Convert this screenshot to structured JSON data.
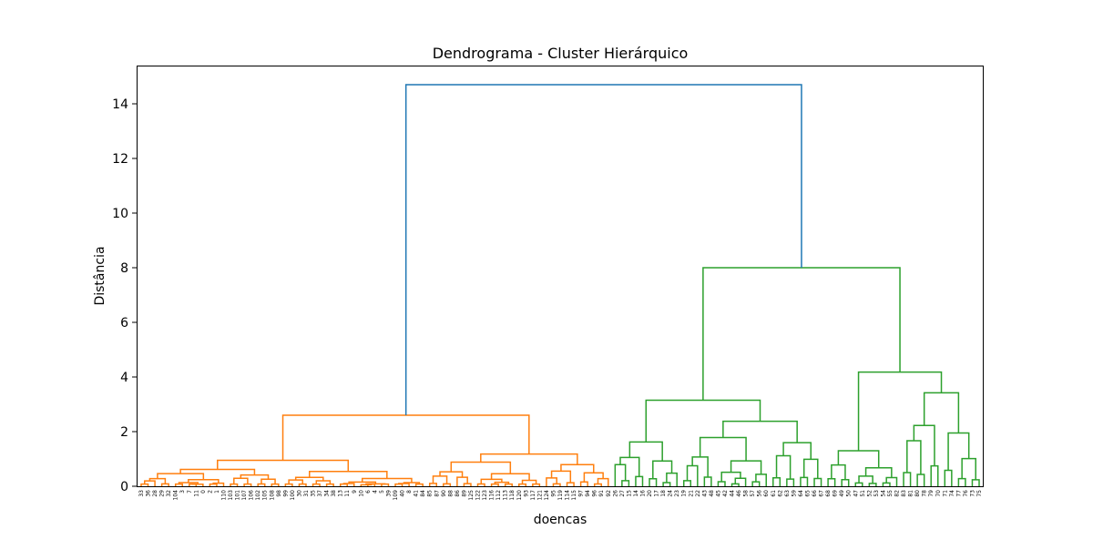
{
  "chart_data": {
    "type": "dendrogram",
    "title": "Dendrograma - Cluster Hierárquico",
    "xlabel": "doencas",
    "ylabel": "Distância",
    "ylim": [
      0,
      15.4
    ],
    "yticks": [
      0,
      2,
      4,
      6,
      8,
      10,
      12,
      14
    ],
    "grid": false,
    "leaves": [
      "33",
      "36",
      "28",
      "29",
      "32",
      "104",
      "3",
      "7",
      "11",
      "0",
      "2",
      "1",
      "110",
      "103",
      "101",
      "107",
      "106",
      "102",
      "105",
      "108",
      "98",
      "99",
      "100",
      "30",
      "31",
      "35",
      "37",
      "34",
      "38",
      "13",
      "11",
      "9",
      "10",
      "6",
      "4",
      "5",
      "39",
      "109",
      "40",
      "8",
      "41",
      "84",
      "85",
      "87",
      "90",
      "88",
      "86",
      "89",
      "125",
      "122",
      "123",
      "116",
      "112",
      "113",
      "118",
      "120",
      "93",
      "117",
      "121",
      "124",
      "95",
      "119",
      "114",
      "115",
      "97",
      "94",
      "96",
      "91",
      "92",
      "26",
      "27",
      "15",
      "14",
      "16",
      "20",
      "17",
      "18",
      "24",
      "23",
      "19",
      "21",
      "22",
      "43",
      "48",
      "45",
      "42",
      "44",
      "46",
      "58",
      "57",
      "56",
      "60",
      "61",
      "62",
      "63",
      "59",
      "64",
      "65",
      "66",
      "67",
      "68",
      "69",
      "49",
      "50",
      "47",
      "51",
      "52",
      "53",
      "54",
      "55",
      "82",
      "83",
      "81",
      "80",
      "78",
      "79",
      "70",
      "71",
      "74",
      "77",
      "76",
      "73",
      "75"
    ],
    "clusters": [
      {
        "color": "#ff7f0e"
      },
      {
        "color": "#2ca02c"
      },
      {
        "color": "#1f77b4"
      }
    ],
    "merges": [
      {
        "cluster": 2,
        "left": [
          0,
          60
        ],
        "right": [
          3,
          61
        ],
        "height": 14.7
      },
      {
        "cluster": 0,
        "left": [
          0,
          30
        ],
        "right": [
          3,
          6
        ],
        "height": 2.6
      },
      {
        "cluster": 0,
        "left": [
          0,
          3
        ],
        "right": [
          3,
          5
        ],
        "height": 0.95
      },
      {
        "cluster": 0,
        "left": [
          0,
          3
        ],
        "right": [
          3,
          2
        ],
        "height": 0.88
      },
      {
        "cluster": 0,
        "left": [
          0,
          2.5
        ],
        "right": [
          3,
          2
        ],
        "height": 0.75
      },
      {
        "cluster": 0,
        "left": [
          0,
          2
        ],
        "right": [
          3,
          2
        ],
        "height": 0.65
      },
      {
        "cluster": 0,
        "left": [
          0,
          1
        ],
        "right": [
          3,
          1
        ],
        "height": 0.42
      },
      {
        "cluster": 0,
        "left": [
          0,
          0.4
        ],
        "right": [
          0,
          0.4
        ],
        "height": 0.4
      },
      {
        "cluster": 0,
        "left": [
          0,
          0.3
        ],
        "right": [
          0,
          0.3
        ],
        "height": 0.3
      },
      {
        "cluster": 0,
        "left": [
          0,
          0.2
        ],
        "right": [
          0,
          0.2
        ],
        "height": 0.22
      },
      {
        "cluster": 0,
        "left": [
          0,
          1
        ],
        "right": [
          3,
          1
        ],
        "height": 0.35
      },
      {
        "cluster": 0,
        "left": [
          0,
          0.2
        ],
        "right": [
          0,
          0.2
        ],
        "height": 0.28
      },
      {
        "cluster": 0,
        "left": [
          0,
          0.15
        ],
        "right": [
          0,
          0.15
        ],
        "height": 0.18
      },
      {
        "cluster": 0,
        "left": [
          0,
          1
        ],
        "right": [
          3,
          1
        ],
        "height": 0.42
      },
      {
        "cluster": 0,
        "left": [
          0,
          0.25
        ],
        "right": [
          0,
          0.25
        ],
        "height": 0.25
      },
      {
        "cluster": 0,
        "left": [
          0,
          1
        ],
        "right": [
          3,
          1
        ],
        "height": 0.38
      },
      {
        "cluster": 0,
        "left": [
          0,
          0.2
        ],
        "right": [
          0,
          0.2
        ],
        "height": 0.2
      },
      {
        "cluster": 0,
        "left": [
          0,
          1
        ],
        "right": [
          3,
          1
        ],
        "height": 0.33
      },
      {
        "cluster": 0,
        "left": [
          0,
          0.15
        ],
        "right": [
          0,
          0.15
        ],
        "height": 0.15
      },
      {
        "cluster": 0,
        "left": [
          0,
          1
        ],
        "right": [
          3,
          1
        ],
        "height": 0.3
      },
      {
        "cluster": 0,
        "left": [
          0,
          0.2
        ],
        "right": [
          0,
          0.2
        ],
        "height": 0.2
      },
      {
        "cluster": 0,
        "left": [
          0,
          3
        ],
        "right": [
          3,
          4
        ],
        "height": 1.18
      },
      {
        "cluster": 0,
        "left": [
          0,
          2
        ],
        "right": [
          3,
          2
        ],
        "height": 1.05
      },
      {
        "cluster": 0,
        "left": [
          0,
          1
        ],
        "right": [
          3,
          1
        ],
        "height": 0.55
      },
      {
        "cluster": 0,
        "left": [
          0,
          1
        ],
        "right": [
          3,
          1
        ],
        "height": 0.45
      },
      {
        "cluster": 0,
        "left": [
          0,
          0.3
        ],
        "right": [
          0,
          0.3
        ],
        "height": 0.33
      },
      {
        "cluster": 0,
        "left": [
          0,
          1
        ],
        "right": [
          3,
          1
        ],
        "height": 0.75
      },
      {
        "cluster": 0,
        "left": [
          0,
          1
        ],
        "right": [
          3,
          1
        ],
        "height": 0.6
      },
      {
        "cluster": 0,
        "left": [
          0,
          0.3
        ],
        "right": [
          0,
          0.3
        ],
        "height": 0.32
      },
      {
        "cluster": 1,
        "left": [
          0,
          8
        ],
        "right": [
          3,
          8
        ],
        "height": 8.0
      },
      {
        "cluster": 1,
        "left": [
          0,
          4
        ],
        "right": [
          3,
          4
        ],
        "height": 3.15
      },
      {
        "cluster": 1,
        "left": [
          0,
          2
        ],
        "right": [
          3,
          2
        ],
        "height": 1.62
      },
      {
        "cluster": 1,
        "left": [
          0,
          1
        ],
        "right": [
          3,
          1
        ],
        "height": 1.35
      },
      {
        "cluster": 1,
        "left": [
          0,
          1
        ],
        "right": [
          3,
          1
        ],
        "height": 0.95
      },
      {
        "cluster": 1,
        "left": [
          0,
          0.3
        ],
        "right": [
          0,
          0.3
        ],
        "height": 0.42
      },
      {
        "cluster": 1,
        "left": [
          0,
          2
        ],
        "right": [
          3,
          2
        ],
        "height": 2.38
      },
      {
        "cluster": 1,
        "left": [
          0,
          1
        ],
        "right": [
          3,
          1
        ],
        "height": 0.9
      },
      {
        "cluster": 1,
        "left": [
          0,
          1
        ],
        "right": [
          3,
          1
        ],
        "height": 1.68
      },
      {
        "cluster": 1,
        "left": [
          0,
          1
        ],
        "right": [
          3,
          1
        ],
        "height": 1.15
      },
      {
        "cluster": 1,
        "left": [
          0,
          0.3
        ],
        "right": [
          0,
          0.3
        ],
        "height": 0.55
      },
      {
        "cluster": 1,
        "left": [
          0,
          4
        ],
        "right": [
          3,
          4
        ],
        "height": 4.18
      },
      {
        "cluster": 1,
        "left": [
          0,
          2
        ],
        "right": [
          3,
          2
        ],
        "height": 1.3
      },
      {
        "cluster": 1,
        "left": [
          0,
          1
        ],
        "right": [
          3,
          1
        ],
        "height": 1.2
      },
      {
        "cluster": 1,
        "left": [
          0,
          0.3
        ],
        "right": [
          0,
          0.3
        ],
        "height": 0.95
      },
      {
        "cluster": 1,
        "left": [
          0,
          2
        ],
        "right": [
          3,
          2
        ],
        "height": 3.42
      },
      {
        "cluster": 1,
        "left": [
          0,
          1
        ],
        "right": [
          3,
          1
        ],
        "height": 1.55
      },
      {
        "cluster": 1,
        "left": [
          0,
          1
        ],
        "right": [
          3,
          1
        ],
        "height": 1.58
      },
      {
        "cluster": 1,
        "left": [
          0,
          0.3
        ],
        "right": [
          0,
          0.3
        ],
        "height": 1.0
      }
    ]
  }
}
